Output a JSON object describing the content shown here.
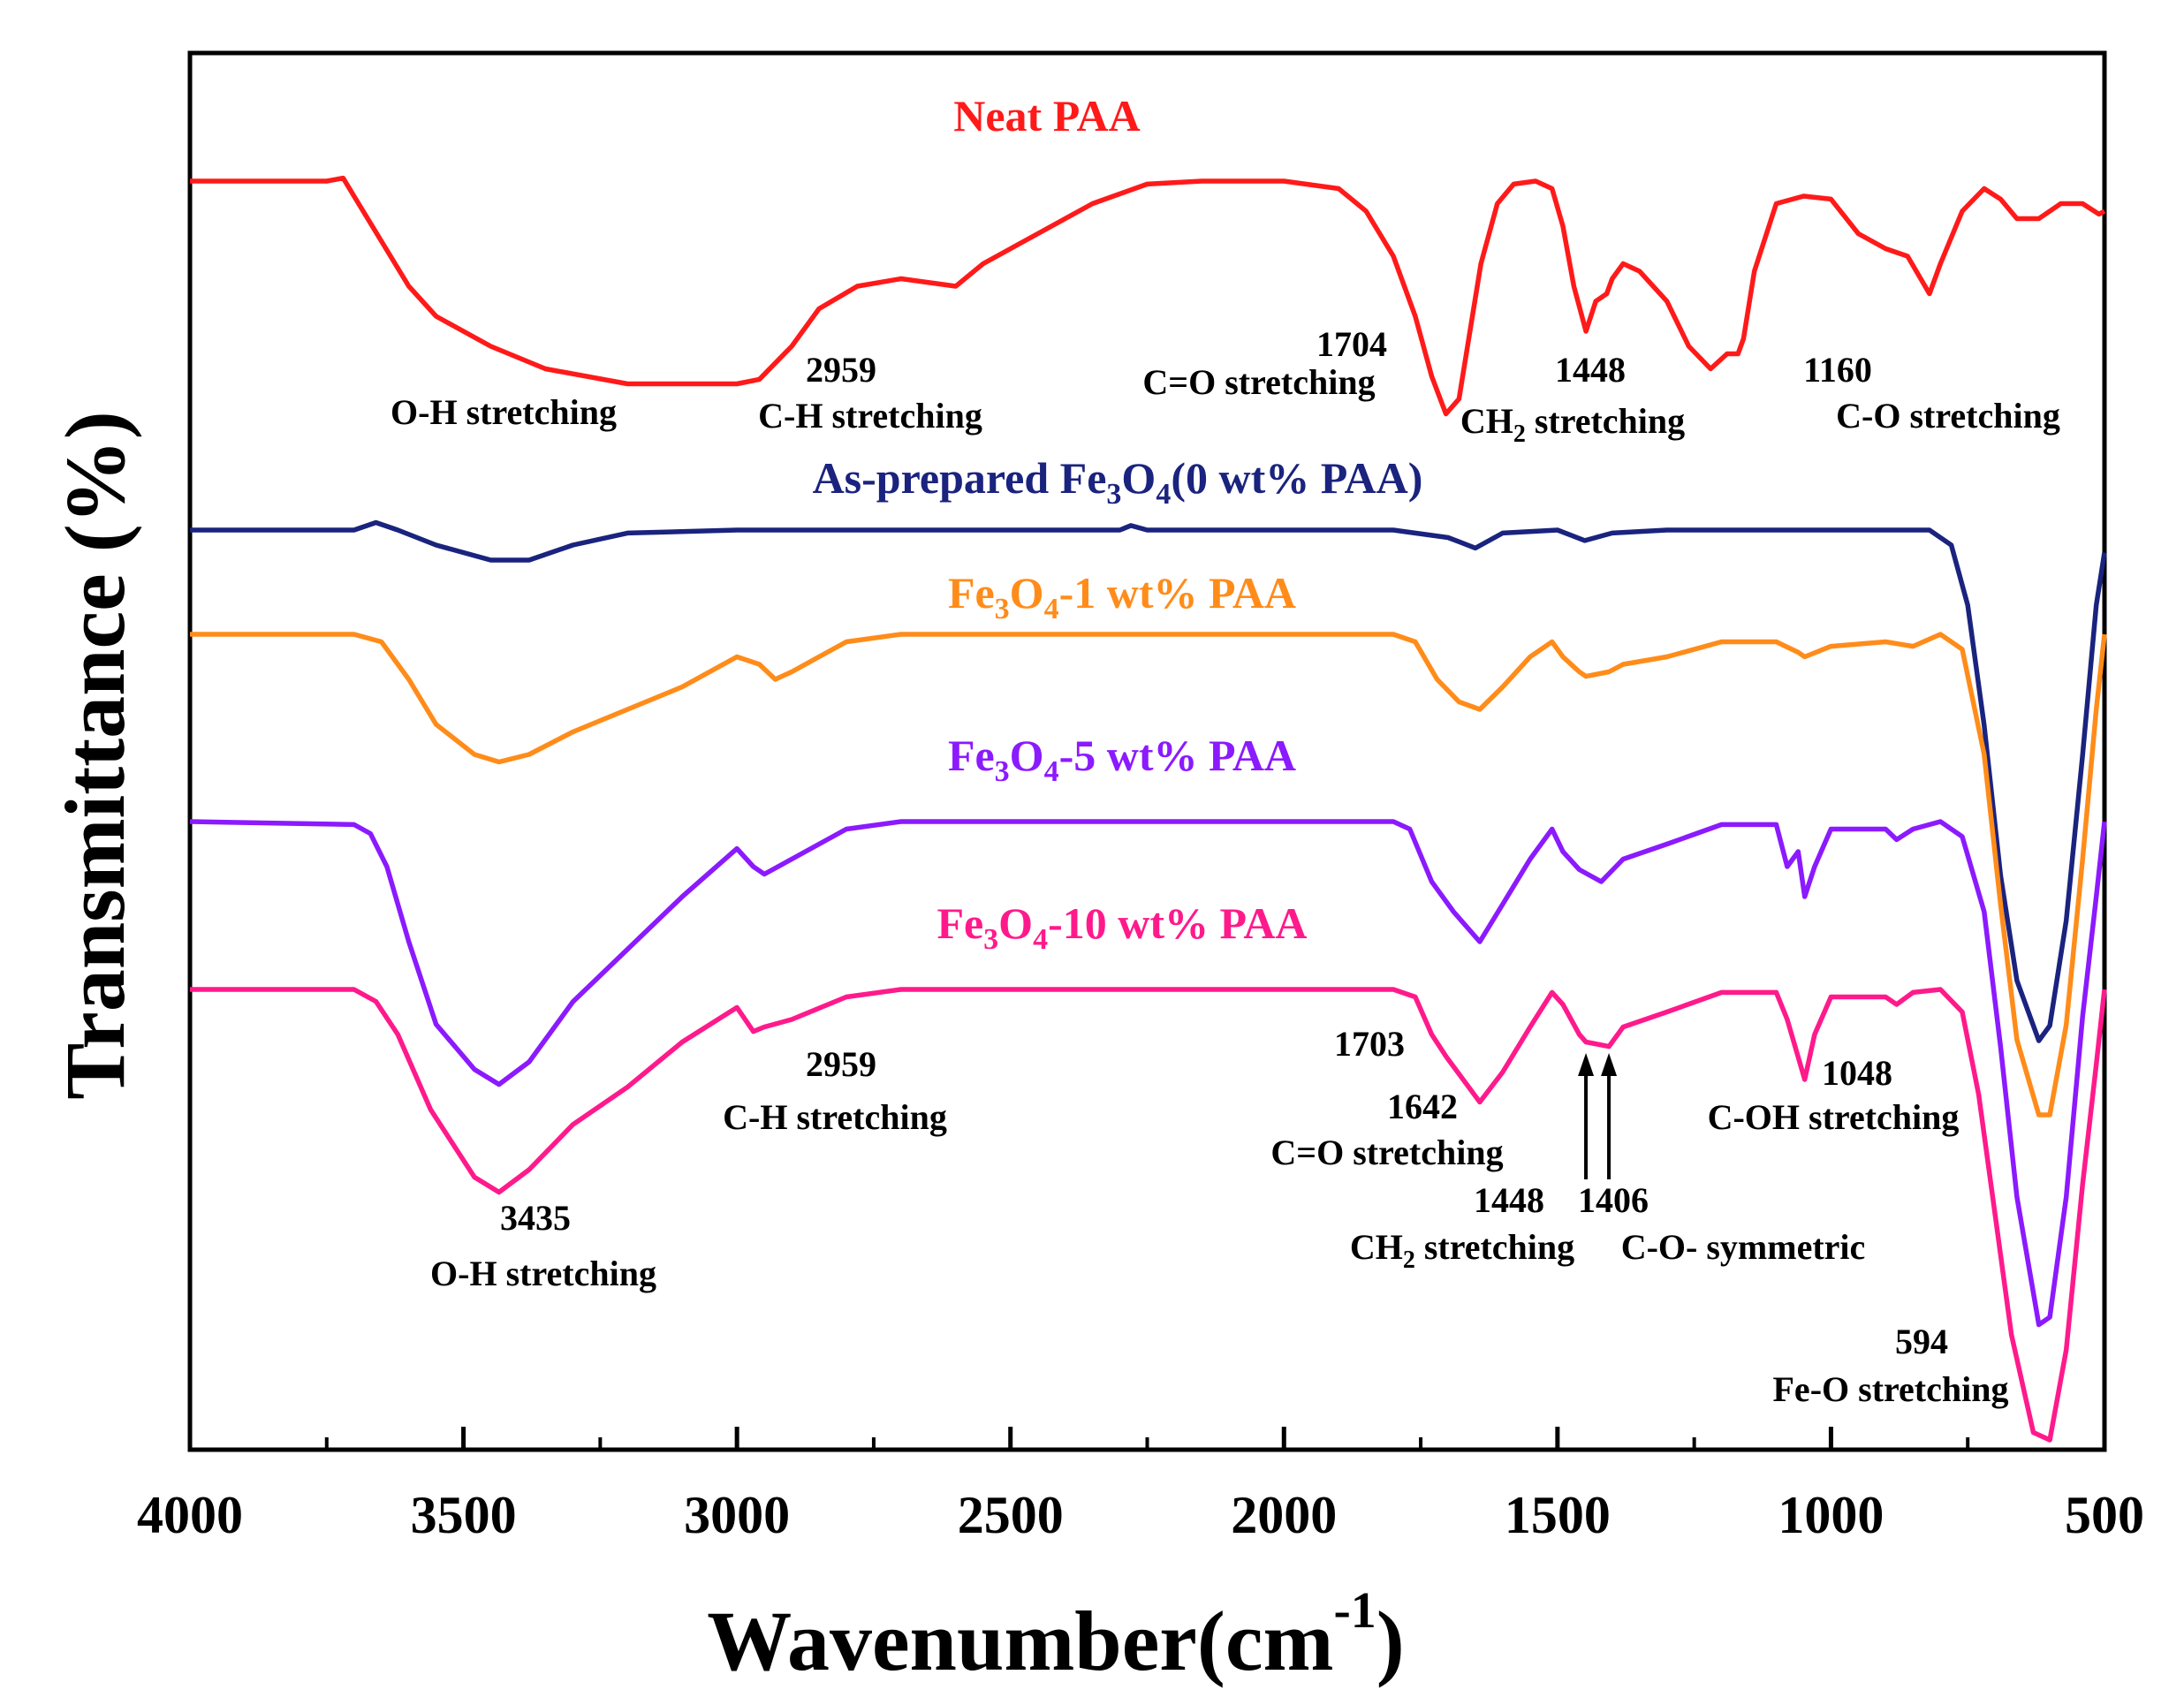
{
  "chart_data": {
    "type": "line",
    "title": "",
    "xlabel": "Wavenumber(cm",
    "xlabel_sup": "-1",
    "xlabel_close": ")",
    "ylabel": "Transmittance (%)",
    "xlim": [
      4000,
      500
    ],
    "x_reversed": true,
    "xticks": [
      4000,
      3500,
      3000,
      2500,
      2000,
      1500,
      1000,
      500
    ],
    "y_ticks_shown": false,
    "grid": false,
    "series": [
      {
        "name": "Neat PAA",
        "label_parts": [
          {
            "t": "Neat PAA"
          }
        ],
        "color": "#ff1a1a",
        "points": [
          [
            4000,
            0.0
          ],
          [
            3800,
            0.0
          ],
          [
            3750,
            0.0
          ],
          [
            3720,
            -0.02
          ],
          [
            3700,
            0.1
          ],
          [
            3650,
            0.4
          ],
          [
            3600,
            0.7
          ],
          [
            3550,
            0.9
          ],
          [
            3450,
            1.1
          ],
          [
            3350,
            1.25
          ],
          [
            3200,
            1.35
          ],
          [
            3000,
            1.35
          ],
          [
            2959,
            1.32
          ],
          [
            2900,
            1.1
          ],
          [
            2850,
            0.85
          ],
          [
            2780,
            0.7
          ],
          [
            2700,
            0.65
          ],
          [
            2600,
            0.7
          ],
          [
            2550,
            0.55
          ],
          [
            2450,
            0.35
          ],
          [
            2350,
            0.15
          ],
          [
            2250,
            0.02
          ],
          [
            2150,
            0.0
          ],
          [
            2000,
            0.0
          ],
          [
            1900,
            0.05
          ],
          [
            1850,
            0.2
          ],
          [
            1800,
            0.5
          ],
          [
            1760,
            0.9
          ],
          [
            1730,
            1.3
          ],
          [
            1704,
            1.55
          ],
          [
            1680,
            1.45
          ],
          [
            1660,
            1.0
          ],
          [
            1640,
            0.55
          ],
          [
            1610,
            0.15
          ],
          [
            1580,
            0.02
          ],
          [
            1540,
            0.0
          ],
          [
            1510,
            0.05
          ],
          [
            1490,
            0.3
          ],
          [
            1470,
            0.7
          ],
          [
            1448,
            1.0
          ],
          [
            1430,
            0.8
          ],
          [
            1410,
            0.75
          ],
          [
            1400,
            0.65
          ],
          [
            1380,
            0.55
          ],
          [
            1350,
            0.6
          ],
          [
            1300,
            0.8
          ],
          [
            1260,
            1.1
          ],
          [
            1220,
            1.25
          ],
          [
            1190,
            1.15
          ],
          [
            1170,
            1.15
          ],
          [
            1160,
            1.05
          ],
          [
            1140,
            0.6
          ],
          [
            1100,
            0.15
          ],
          [
            1050,
            0.1
          ],
          [
            1000,
            0.12
          ],
          [
            950,
            0.35
          ],
          [
            900,
            0.45
          ],
          [
            860,
            0.5
          ],
          [
            820,
            0.75
          ],
          [
            800,
            0.55
          ],
          [
            760,
            0.2
          ],
          [
            720,
            0.05
          ],
          [
            690,
            0.12
          ],
          [
            660,
            0.25
          ],
          [
            620,
            0.25
          ],
          [
            580,
            0.15
          ],
          [
            540,
            0.15
          ],
          [
            510,
            0.22
          ],
          [
            500,
            0.2
          ]
        ]
      },
      {
        "name": "As-prepared Fe3O4 (0 wt% PAA)",
        "label_parts": [
          {
            "t": "As-prepared  Fe"
          },
          {
            "t": "3",
            "s": "sub"
          },
          {
            "t": "O"
          },
          {
            "t": "4",
            "s": "sub"
          },
          {
            "t": "(0 wt% PAA)"
          }
        ],
        "color": "#1a237e",
        "points": [
          [
            4000,
            0.0
          ],
          [
            3700,
            0.0
          ],
          [
            3660,
            -0.05
          ],
          [
            3620,
            0.0
          ],
          [
            3550,
            0.1
          ],
          [
            3450,
            0.2
          ],
          [
            3380,
            0.2
          ],
          [
            3300,
            0.1
          ],
          [
            3200,
            0.02
          ],
          [
            3000,
            0.0
          ],
          [
            2300,
            0.0
          ],
          [
            2280,
            -0.03
          ],
          [
            2250,
            0.0
          ],
          [
            1800,
            0.0
          ],
          [
            1700,
            0.05
          ],
          [
            1650,
            0.12
          ],
          [
            1600,
            0.02
          ],
          [
            1500,
            0.0
          ],
          [
            1450,
            0.07
          ],
          [
            1400,
            0.02
          ],
          [
            1300,
            0.0
          ],
          [
            820,
            0.0
          ],
          [
            780,
            0.1
          ],
          [
            750,
            0.5
          ],
          [
            720,
            1.3
          ],
          [
            690,
            2.3
          ],
          [
            660,
            3.0
          ],
          [
            620,
            3.4
          ],
          [
            600,
            3.3
          ],
          [
            570,
            2.6
          ],
          [
            540,
            1.5
          ],
          [
            515,
            0.5
          ],
          [
            500,
            0.15
          ]
        ]
      },
      {
        "name": "Fe3O4-1 wt% PAA",
        "label_parts": [
          {
            "t": "Fe"
          },
          {
            "t": "3",
            "s": "sub"
          },
          {
            "t": "O"
          },
          {
            "t": "4",
            "s": "sub"
          },
          {
            "t": "-1 wt% PAA"
          }
        ],
        "color": "#ff8c1a",
        "points": [
          [
            4000,
            0.0
          ],
          [
            3700,
            0.0
          ],
          [
            3650,
            0.05
          ],
          [
            3600,
            0.3
          ],
          [
            3550,
            0.6
          ],
          [
            3480,
            0.8
          ],
          [
            3435,
            0.85
          ],
          [
            3380,
            0.8
          ],
          [
            3300,
            0.65
          ],
          [
            3200,
            0.5
          ],
          [
            3100,
            0.35
          ],
          [
            3000,
            0.15
          ],
          [
            2959,
            0.2
          ],
          [
            2930,
            0.3
          ],
          [
            2900,
            0.25
          ],
          [
            2850,
            0.15
          ],
          [
            2800,
            0.05
          ],
          [
            2700,
            0.0
          ],
          [
            1800,
            0.0
          ],
          [
            1760,
            0.05
          ],
          [
            1720,
            0.3
          ],
          [
            1680,
            0.45
          ],
          [
            1642,
            0.5
          ],
          [
            1600,
            0.35
          ],
          [
            1550,
            0.15
          ],
          [
            1510,
            0.05
          ],
          [
            1490,
            0.15
          ],
          [
            1460,
            0.25
          ],
          [
            1448,
            0.28
          ],
          [
            1406,
            0.25
          ],
          [
            1380,
            0.2
          ],
          [
            1300,
            0.15
          ],
          [
            1200,
            0.05
          ],
          [
            1100,
            0.05
          ],
          [
            1060,
            0.12
          ],
          [
            1048,
            0.15
          ],
          [
            1000,
            0.08
          ],
          [
            900,
            0.05
          ],
          [
            850,
            0.08
          ],
          [
            800,
            0.0
          ],
          [
            760,
            0.1
          ],
          [
            720,
            0.8
          ],
          [
            690,
            1.8
          ],
          [
            660,
            2.7
          ],
          [
            620,
            3.2
          ],
          [
            600,
            3.2
          ],
          [
            570,
            2.6
          ],
          [
            540,
            1.5
          ],
          [
            515,
            0.5
          ],
          [
            500,
            0.0
          ]
        ]
      },
      {
        "name": "Fe3O4-5 wt% PAA",
        "label_parts": [
          {
            "t": "Fe"
          },
          {
            "t": "3",
            "s": "sub"
          },
          {
            "t": "O"
          },
          {
            "t": "4",
            "s": "sub"
          },
          {
            "t": "-5 wt% PAA"
          }
        ],
        "color": "#8b1aff",
        "points": [
          [
            4000,
            0.0
          ],
          [
            3700,
            0.02
          ],
          [
            3670,
            0.08
          ],
          [
            3640,
            0.3
          ],
          [
            3600,
            0.8
          ],
          [
            3550,
            1.35
          ],
          [
            3480,
            1.65
          ],
          [
            3435,
            1.75
          ],
          [
            3380,
            1.6
          ],
          [
            3300,
            1.2
          ],
          [
            3200,
            0.85
          ],
          [
            3100,
            0.5
          ],
          [
            3000,
            0.18
          ],
          [
            2970,
            0.3
          ],
          [
            2950,
            0.35
          ],
          [
            2900,
            0.25
          ],
          [
            2800,
            0.05
          ],
          [
            2700,
            0.0
          ],
          [
            1800,
            0.0
          ],
          [
            1770,
            0.05
          ],
          [
            1730,
            0.4
          ],
          [
            1690,
            0.6
          ],
          [
            1642,
            0.8
          ],
          [
            1600,
            0.55
          ],
          [
            1550,
            0.25
          ],
          [
            1510,
            0.05
          ],
          [
            1490,
            0.2
          ],
          [
            1460,
            0.32
          ],
          [
            1420,
            0.4
          ],
          [
            1380,
            0.25
          ],
          [
            1300,
            0.15
          ],
          [
            1200,
            0.02
          ],
          [
            1100,
            0.02
          ],
          [
            1080,
            0.3
          ],
          [
            1060,
            0.2
          ],
          [
            1048,
            0.5
          ],
          [
            1030,
            0.3
          ],
          [
            1000,
            0.05
          ],
          [
            900,
            0.05
          ],
          [
            880,
            0.12
          ],
          [
            850,
            0.05
          ],
          [
            800,
            0.0
          ],
          [
            760,
            0.1
          ],
          [
            720,
            0.6
          ],
          [
            690,
            1.5
          ],
          [
            660,
            2.5
          ],
          [
            620,
            3.35
          ],
          [
            600,
            3.3
          ],
          [
            570,
            2.5
          ],
          [
            540,
            1.3
          ],
          [
            515,
            0.5
          ],
          [
            500,
            0.0
          ]
        ]
      },
      {
        "name": "Fe3O4-10 wt% PAA",
        "label_parts": [
          {
            "t": "Fe"
          },
          {
            "t": "3",
            "s": "sub"
          },
          {
            "t": "O"
          },
          {
            "t": "4",
            "s": "sub"
          },
          {
            "t": "-10 wt% PAA"
          }
        ],
        "color": "#ff1a8c",
        "points": [
          [
            4000,
            0.0
          ],
          [
            3700,
            0.0
          ],
          [
            3660,
            0.08
          ],
          [
            3620,
            0.3
          ],
          [
            3560,
            0.8
          ],
          [
            3480,
            1.25
          ],
          [
            3435,
            1.35
          ],
          [
            3380,
            1.2
          ],
          [
            3300,
            0.9
          ],
          [
            3200,
            0.65
          ],
          [
            3100,
            0.35
          ],
          [
            3000,
            0.12
          ],
          [
            2970,
            0.28
          ],
          [
            2950,
            0.25
          ],
          [
            2900,
            0.2
          ],
          [
            2800,
            0.05
          ],
          [
            2700,
            0.0
          ],
          [
            1800,
            0.0
          ],
          [
            1760,
            0.05
          ],
          [
            1730,
            0.3
          ],
          [
            1703,
            0.45
          ],
          [
            1642,
            0.75
          ],
          [
            1600,
            0.55
          ],
          [
            1550,
            0.25
          ],
          [
            1510,
            0.02
          ],
          [
            1490,
            0.1
          ],
          [
            1460,
            0.3
          ],
          [
            1448,
            0.35
          ],
          [
            1406,
            0.38
          ],
          [
            1380,
            0.25
          ],
          [
            1300,
            0.15
          ],
          [
            1200,
            0.02
          ],
          [
            1100,
            0.02
          ],
          [
            1080,
            0.2
          ],
          [
            1048,
            0.6
          ],
          [
            1030,
            0.3
          ],
          [
            1000,
            0.05
          ],
          [
            900,
            0.05
          ],
          [
            880,
            0.1
          ],
          [
            850,
            0.02
          ],
          [
            800,
            0.0
          ],
          [
            760,
            0.15
          ],
          [
            730,
            0.7
          ],
          [
            700,
            1.5
          ],
          [
            670,
            2.3
          ],
          [
            630,
            2.95
          ],
          [
            600,
            3.0
          ],
          [
            570,
            2.4
          ],
          [
            540,
            1.3
          ],
          [
            515,
            0.5
          ],
          [
            500,
            0.0
          ]
        ]
      }
    ],
    "annotations": [
      {
        "text": "O-H stretching"
      },
      {
        "text": "2959"
      },
      {
        "text": "C-H stretching"
      },
      {
        "text": "1704"
      },
      {
        "text": "C=O stretching"
      },
      {
        "text": "1448"
      },
      {
        "text": "CH",
        "sub": "2",
        "rest": " stretching"
      },
      {
        "text": "1160"
      },
      {
        "text": "C-O stretching"
      },
      {
        "text": "2959"
      },
      {
        "text": "C-H stretching"
      },
      {
        "text": "1703"
      },
      {
        "text": "1642"
      },
      {
        "text": "C=O stretching"
      },
      {
        "text": "1048"
      },
      {
        "text": "C-OH stretching"
      },
      {
        "text": "3435"
      },
      {
        "text": "O-H stretching"
      },
      {
        "text": "1448"
      },
      {
        "text": "1406"
      },
      {
        "text": "CH",
        "sub": "2",
        "rest": " stretching"
      },
      {
        "text": "C-O- symmetric"
      },
      {
        "text": "594"
      },
      {
        "text": "Fe-O stretching"
      }
    ],
    "arrows": [
      {
        "name": "arrow-1448",
        "wavenumber": 1448
      },
      {
        "name": "arrow-1406",
        "wavenumber": 1406
      }
    ]
  }
}
